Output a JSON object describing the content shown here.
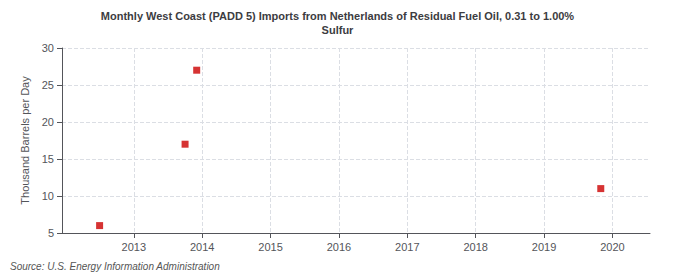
{
  "chart_data": {
    "type": "scatter",
    "title": "Monthly West Coast (PADD 5) Imports from Netherlands of Residual Fuel Oil, 0.31 to 1.00%\nSulfur",
    "ylabel": "Thousand Barrels per Day",
    "source": "Source: U.S. Energy Information Administration",
    "x": [
      2012.5,
      2013.75,
      2013.92,
      2019.83
    ],
    "values": [
      6.0,
      17.0,
      27.0,
      11.0
    ],
    "color": "#cc0000",
    "marker": "square",
    "xlim": [
      2011.95,
      2020.55
    ],
    "xticks": [
      2013,
      2014,
      2015,
      2016,
      2017,
      2018,
      2019,
      2020
    ],
    "ylim": [
      5,
      30
    ],
    "yticks": [
      5,
      10,
      15,
      20,
      25,
      30
    ],
    "grid": true
  }
}
